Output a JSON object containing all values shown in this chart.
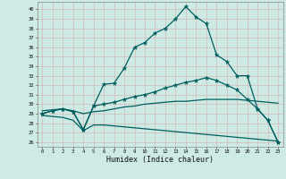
{
  "xlabel": "Humidex (Indice chaleur)",
  "bg_color": "#cdeae4",
  "grid_color": "#c0d8d0",
  "line_color": "#005f5f",
  "xlim": [
    -0.5,
    23.5
  ],
  "ylim": [
    25.5,
    40.8
  ],
  "yticks": [
    26,
    27,
    28,
    29,
    30,
    31,
    32,
    33,
    34,
    35,
    36,
    37,
    38,
    39,
    40
  ],
  "xticks": [
    0,
    1,
    2,
    3,
    4,
    5,
    6,
    7,
    8,
    9,
    10,
    11,
    12,
    13,
    14,
    15,
    16,
    17,
    18,
    19,
    20,
    21,
    22,
    23
  ],
  "line1_x": [
    0,
    1,
    2,
    3,
    4,
    5,
    6,
    7,
    8,
    9,
    10,
    11,
    12,
    13,
    14,
    15,
    16,
    17,
    18,
    19,
    20,
    21,
    22,
    23
  ],
  "line1_y": [
    29.0,
    29.3,
    29.5,
    29.2,
    27.3,
    29.8,
    32.1,
    32.2,
    33.8,
    36.0,
    36.5,
    37.5,
    38.0,
    39.0,
    40.3,
    39.2,
    38.5,
    35.2,
    34.5,
    33.0,
    33.0,
    29.5,
    28.3,
    26.0
  ],
  "line2_x": [
    0,
    1,
    2,
    3,
    4,
    5,
    6,
    7,
    8,
    9,
    10,
    11,
    12,
    13,
    14,
    15,
    16,
    17,
    18,
    19,
    20,
    21,
    22,
    23
  ],
  "line2_y": [
    29.0,
    29.3,
    29.5,
    29.2,
    27.3,
    29.8,
    30.0,
    30.2,
    30.5,
    30.8,
    31.0,
    31.3,
    31.7,
    32.0,
    32.3,
    32.5,
    32.8,
    32.5,
    32.0,
    31.5,
    30.5,
    29.5,
    28.3,
    26.0
  ],
  "line3_x": [
    0,
    1,
    2,
    3,
    4,
    5,
    6,
    7,
    8,
    9,
    10,
    11,
    12,
    13,
    14,
    15,
    16,
    17,
    18,
    19,
    20,
    21,
    22,
    23
  ],
  "line3_y": [
    29.3,
    29.4,
    29.5,
    29.3,
    29.0,
    29.2,
    29.3,
    29.5,
    29.7,
    29.8,
    30.0,
    30.1,
    30.2,
    30.3,
    30.3,
    30.4,
    30.5,
    30.5,
    30.5,
    30.5,
    30.4,
    30.3,
    30.2,
    30.1
  ],
  "line4_x": [
    0,
    1,
    2,
    3,
    4,
    5,
    6,
    7,
    8,
    9,
    10,
    11,
    12,
    13,
    14,
    15,
    16,
    17,
    18,
    19,
    20,
    21,
    22,
    23
  ],
  "line4_y": [
    28.8,
    28.7,
    28.6,
    28.3,
    27.2,
    27.8,
    27.8,
    27.7,
    27.6,
    27.5,
    27.4,
    27.3,
    27.2,
    27.1,
    27.0,
    26.9,
    26.8,
    26.7,
    26.6,
    26.5,
    26.4,
    26.3,
    26.2,
    26.1
  ]
}
